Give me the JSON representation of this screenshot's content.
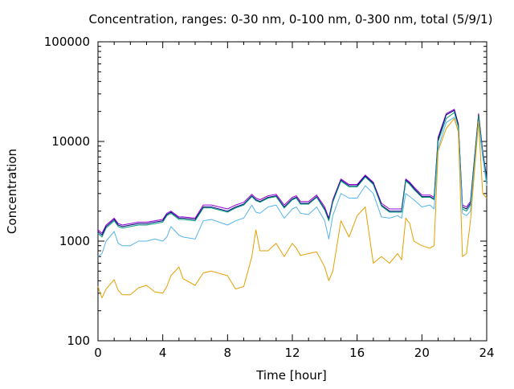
{
  "chart_data": {
    "type": "line",
    "title": "Concentration, ranges: 0-30 nm, 0-100 nm, 0-300 nm, total (5/9/1)",
    "xlabel": "Time [hour]",
    "ylabel": "Concentration",
    "xlim": [
      0,
      24
    ],
    "ylim": [
      100,
      100000
    ],
    "yscale": "log",
    "grid": false,
    "x_ticks": [
      "0",
      "4",
      "8",
      "12",
      "16",
      "20",
      "24"
    ],
    "y_ticks": [
      "100",
      "1000",
      "10000",
      "100000"
    ],
    "x": [
      0,
      0.25,
      0.5,
      1,
      1.25,
      1.5,
      2,
      2.5,
      3,
      3.5,
      4,
      4.25,
      4.5,
      5,
      5.25,
      6,
      6.5,
      7,
      8,
      8.5,
      9,
      9.5,
      9.75,
      10,
      10.5,
      11,
      11.5,
      12,
      12.25,
      12.5,
      13,
      13.5,
      14,
      14.25,
      14.5,
      15,
      15.5,
      16,
      16.5,
      17,
      17.5,
      18,
      18.5,
      18.75,
      19,
      19.25,
      19.5,
      20,
      20.5,
      20.75,
      21,
      21.5,
      22,
      22.25,
      22.5,
      22.75,
      23,
      23.5,
      23.75,
      24
    ],
    "series": [
      {
        "color": "#9400d3",
        "values": [
          1300,
          1200,
          1450,
          1700,
          1500,
          1450,
          1500,
          1550,
          1550,
          1600,
          1650,
          1900,
          2000,
          1750,
          1750,
          1700,
          2300,
          2300,
          2100,
          2300,
          2450,
          2950,
          2700,
          2600,
          2850,
          2950,
          2300,
          2750,
          2850,
          2500,
          2500,
          2900,
          2200,
          1700,
          2600,
          4200,
          3700,
          3700,
          4600,
          3900,
          2400,
          2100,
          2100,
          2100,
          4200,
          3900,
          3500,
          2900,
          2900,
          2750,
          11000,
          19000,
          21000,
          15000,
          2300,
          2200,
          2500,
          19000,
          8000,
          4300
        ]
      },
      {
        "color": "#000080",
        "values": [
          1250,
          1150,
          1400,
          1650,
          1450,
          1400,
          1450,
          1500,
          1500,
          1550,
          1600,
          1850,
          1950,
          1700,
          1700,
          1650,
          2200,
          2200,
          2000,
          2200,
          2350,
          2850,
          2600,
          2500,
          2750,
          2850,
          2200,
          2650,
          2750,
          2400,
          2400,
          2800,
          2100,
          1650,
          2500,
          4100,
          3600,
          3600,
          4500,
          3800,
          2300,
          2000,
          2000,
          2000,
          4100,
          3800,
          3400,
          2800,
          2800,
          2650,
          10500,
          18500,
          20500,
          14500,
          2200,
          2100,
          2400,
          18500,
          7800,
          4200
        ]
      },
      {
        "color": "#009e73",
        "values": [
          1200,
          1100,
          1350,
          1600,
          1400,
          1350,
          1400,
          1450,
          1450,
          1500,
          1550,
          1800,
          1900,
          1650,
          1650,
          1600,
          2150,
          2150,
          1950,
          2150,
          2300,
          2800,
          2550,
          2450,
          2700,
          2800,
          2150,
          2600,
          2700,
          2350,
          2350,
          2750,
          2050,
          1600,
          2450,
          4000,
          3500,
          3500,
          4400,
          3700,
          2250,
          1950,
          1950,
          1950,
          4000,
          3700,
          3300,
          2750,
          2750,
          2600,
          10000,
          17000,
          19500,
          14000,
          2100,
          2000,
          2300,
          18000,
          7500,
          4000
        ]
      },
      {
        "color": "#56b4e9",
        "values": [
          700,
          750,
          1000,
          1250,
          950,
          900,
          900,
          1000,
          1000,
          1050,
          1000,
          1100,
          1400,
          1150,
          1100,
          1050,
          1600,
          1650,
          1450,
          1600,
          1700,
          2300,
          1950,
          1900,
          2200,
          2300,
          1700,
          2100,
          2200,
          1900,
          1850,
          2200,
          1600,
          1050,
          1800,
          3000,
          2700,
          2700,
          3600,
          3000,
          1750,
          1700,
          1800,
          1700,
          3000,
          2800,
          2600,
          2200,
          2300,
          2100,
          8500,
          15500,
          17500,
          12500,
          1900,
          1800,
          2000,
          16000,
          7000,
          3600
        ]
      },
      {
        "color": "#e69f00",
        "values": [
          350,
          270,
          330,
          410,
          320,
          290,
          290,
          340,
          360,
          310,
          300,
          350,
          450,
          550,
          420,
          360,
          480,
          500,
          450,
          330,
          350,
          700,
          1300,
          800,
          800,
          950,
          700,
          950,
          850,
          720,
          750,
          780,
          550,
          400,
          500,
          1600,
          1100,
          1800,
          2200,
          600,
          700,
          600,
          750,
          650,
          1700,
          1500,
          1000,
          900,
          850,
          900,
          8000,
          13500,
          17000,
          12500,
          700,
          750,
          1600,
          16000,
          3000,
          2700
        ]
      }
    ]
  }
}
